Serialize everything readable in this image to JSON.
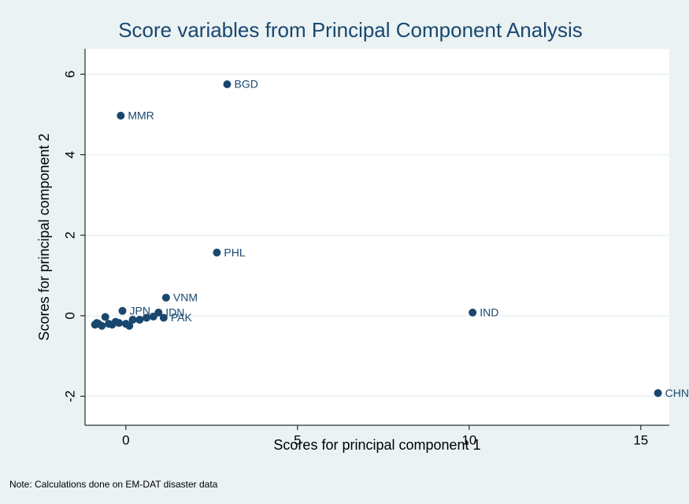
{
  "chart_data": {
    "type": "scatter",
    "title": "Score variables from Principal Component Analysis",
    "x_label": "Scores for principal component 1",
    "y_label": "Scores for principal component 2",
    "note": "Note: Calculations done on EM-DAT disaster data",
    "color": "#1a476f",
    "grid": true,
    "xlim": [
      -1.19,
      15.83
    ],
    "xticks": [
      0,
      5,
      10,
      15
    ],
    "ylim": [
      -2.72,
      6.63
    ],
    "yticks": [
      -2,
      0,
      2,
      4,
      6
    ],
    "x": [
      2.95,
      -0.15,
      2.65,
      1.17,
      10.1,
      15.5,
      -0.1,
      0.95,
      1.1,
      -0.9,
      -0.8,
      -0.7,
      -0.6,
      -0.5,
      -0.4,
      -0.3,
      -0.2,
      0,
      0.2,
      0.4,
      0.6,
      0.8,
      -0.85,
      0.1
    ],
    "values": [
      5.75,
      4.97,
      1.57,
      0.45,
      0.08,
      -1.92,
      0.12,
      0.08,
      -0.05,
      -0.22,
      -0.2,
      -0.25,
      -0.03,
      -0.2,
      -0.22,
      -0.15,
      -0.18,
      -0.2,
      -0.1,
      -0.1,
      -0.05,
      -0.02,
      -0.18,
      -0.25
    ],
    "labels": [
      "BGD",
      "MMR",
      "PHL",
      "VNM",
      "IND",
      "CHN",
      "JPN",
      "IDN",
      "PAK",
      null,
      null,
      null,
      null,
      null,
      null,
      null,
      null,
      null,
      null,
      null,
      null,
      null,
      null,
      null
    ]
  }
}
